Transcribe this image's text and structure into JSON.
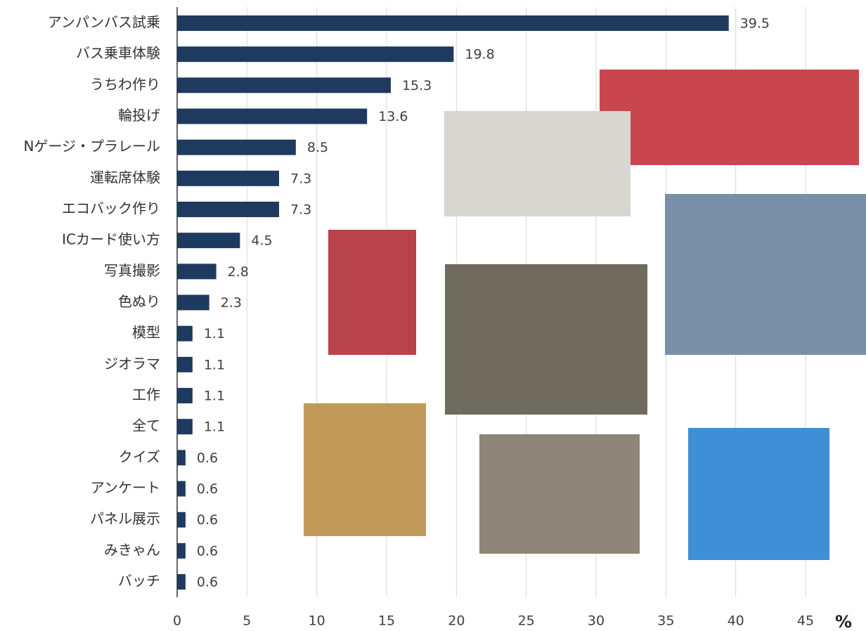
{
  "chart_data": {
    "type": "bar",
    "orientation": "horizontal",
    "categories": [
      "アンパンバス試乗",
      "バス乗車体験",
      "うちわ作り",
      "輪投げ",
      "Nゲージ・プラレール",
      "運転席体験",
      "エコバック作り",
      "ICカード使い方",
      "写真撮影",
      "色ぬり",
      "模型",
      "ジオラマ",
      "工作",
      "全て",
      "クイズ",
      "アンケート",
      "パネル展示",
      "みきゃん",
      "バッチ"
    ],
    "values": [
      39.5,
      19.8,
      15.3,
      13.6,
      8.5,
      7.3,
      7.3,
      4.5,
      2.8,
      2.3,
      1.1,
      1.1,
      1.1,
      1.1,
      0.6,
      0.6,
      0.6,
      0.6,
      0.6
    ],
    "color": "#1f3a5f",
    "xlabel": "%",
    "xlim": [
      0,
      45
    ],
    "xticks": [
      0,
      5,
      10,
      15,
      20,
      25,
      30,
      35,
      40,
      45
    ],
    "grid": true
  }
}
